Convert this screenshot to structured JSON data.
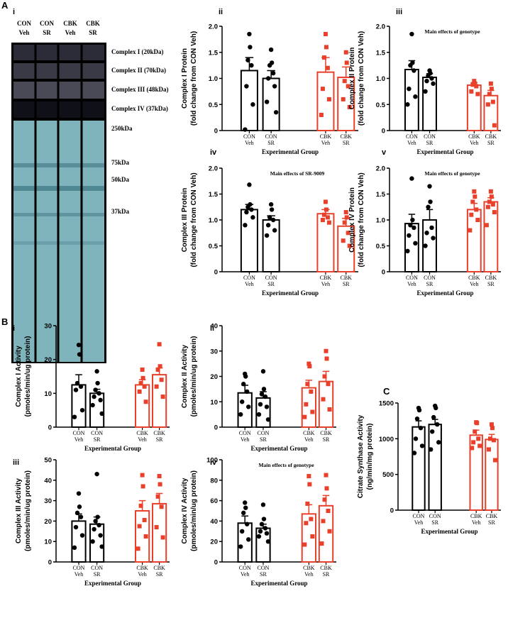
{
  "panels": {
    "A": "A",
    "A_i": "i",
    "B": "B",
    "C": "C"
  },
  "blot": {
    "lanes": [
      "CON Veh",
      "CON SR",
      "CBK Veh",
      "CBK SR"
    ],
    "bands": [
      "Complex I (20kDa)",
      "Complex II (70kDa)",
      "Complex III (48kDa)",
      "Complex IV (37kDa)"
    ],
    "markers": [
      "250kDa",
      "75kDa",
      "50kDa",
      "37kDa"
    ]
  },
  "chart_data": [
    {
      "type": "bar",
      "panel": "ii",
      "ylabel": [
        "Complex I Protein",
        "(fold change from CON Veh)"
      ],
      "xlabel": "Experimental Group",
      "categories": [
        "CON Veh",
        "CON SR",
        "CBK Veh",
        "CBK SR"
      ],
      "colors": [
        "#000000",
        "#000000",
        "#e8402a",
        "#e8402a"
      ],
      "markers": [
        "circle",
        "circle",
        "square",
        "square"
      ],
      "values": [
        1.15,
        1.0,
        1.12,
        1.02
      ],
      "errors": [
        0.25,
        0.15,
        0.28,
        0.2
      ],
      "points": [
        [
          1.85,
          1.6,
          1.35,
          1.25,
          0.85,
          0.5,
          0.02
        ],
        [
          1.55,
          1.3,
          1.25,
          1.1,
          1.0,
          0.85,
          0.55,
          0.35
        ],
        [
          1.85,
          1.6,
          1.4,
          1.2,
          0.8,
          0.6,
          0.3
        ],
        [
          1.5,
          1.3,
          0.95,
          0.85,
          0.6,
          0.45
        ]
      ],
      "ylim": [
        0,
        2
      ],
      "yticks": [
        0,
        0.5,
        {
          "value": 1,
          "label": "1.0"
        },
        1.5,
        {
          "value": 2,
          "label": "2.0"
        }
      ]
    },
    {
      "type": "bar",
      "panel": "iii",
      "annotation": "Main effects of genotype",
      "ylabel": [
        "Complex II Protein",
        "(fold change from CON Veh)"
      ],
      "xlabel": "Experimental Group",
      "categories": [
        "CON Veh",
        "CON SR",
        "CBK Veh",
        "CBK SR"
      ],
      "colors": [
        "#000000",
        "#000000",
        "#e8402a",
        "#e8402a"
      ],
      "markers": [
        "circle",
        "circle",
        "square",
        "square"
      ],
      "values": [
        1.17,
        1.02,
        0.87,
        0.67
      ],
      "errors": [
        0.17,
        0.07,
        0.05,
        0.1
      ],
      "points": [
        [
          1.85,
          1.3,
          1.25,
          1.15,
          0.8,
          0.65,
          0.5
        ],
        [
          1.15,
          1.1,
          1.05,
          1.0,
          0.95,
          0.9,
          0.75
        ],
        [
          0.95,
          0.9,
          0.88,
          0.85,
          0.75,
          0.7
        ],
        [
          0.9,
          0.8,
          0.7,
          0.55,
          0.5,
          0.1
        ]
      ],
      "ylim": [
        0,
        2
      ],
      "yticks": [
        0,
        0.5,
        {
          "value": 1,
          "label": "1.0"
        },
        1.5,
        {
          "value": 2,
          "label": "2.0"
        }
      ]
    },
    {
      "type": "bar",
      "panel": "iv",
      "annotation": "Main effects of SR-9009",
      "ylabel": [
        "Complex III Protein",
        "(fold change from CON Veh)"
      ],
      "xlabel": "Experimental Group",
      "categories": [
        "CON Veh",
        "CON SR",
        "CBK Veh",
        "CBK SR"
      ],
      "colors": [
        "#000000",
        "#000000",
        "#e8402a",
        "#e8402a"
      ],
      "markers": [
        "circle",
        "circle",
        "square",
        "square"
      ],
      "values": [
        1.2,
        1.0,
        1.12,
        0.88
      ],
      "errors": [
        0.1,
        0.08,
        0.08,
        0.15
      ],
      "points": [
        [
          1.68,
          1.3,
          1.25,
          1.2,
          1.15,
          1.05,
          0.9
        ],
        [
          1.3,
          1.2,
          1.05,
          1.0,
          0.9,
          0.8,
          0.7
        ],
        [
          1.35,
          1.2,
          1.1,
          1.05,
          1.0,
          0.95
        ],
        [
          1.15,
          1.05,
          0.95,
          0.75,
          0.6,
          0.5
        ]
      ],
      "ylim": [
        0,
        2
      ],
      "yticks": [
        0,
        0.5,
        {
          "value": 1,
          "label": "1.0"
        },
        1.5,
        {
          "value": 2,
          "label": "2.0"
        }
      ]
    },
    {
      "type": "bar",
      "panel": "v",
      "annotation": "Main effects of genotype",
      "ylabel": [
        "Complex IV Protein",
        "(fold change from CON Veh)"
      ],
      "xlabel": "Experimental Group",
      "categories": [
        "CON Veh",
        "CON SR",
        "CBK Veh",
        "CBK SR"
      ],
      "colors": [
        "#000000",
        "#000000",
        "#e8402a",
        "#e8402a"
      ],
      "markers": [
        "circle",
        "circle",
        "square",
        "square"
      ],
      "values": [
        0.93,
        1.0,
        1.2,
        1.35
      ],
      "errors": [
        0.18,
        0.2,
        0.12,
        0.08
      ],
      "points": [
        [
          1.8,
          1.0,
          0.9,
          0.85,
          0.7,
          0.55,
          0.4
        ],
        [
          1.65,
          1.35,
          1.25,
          0.85,
          0.75,
          0.65,
          0.5
        ],
        [
          1.55,
          1.45,
          1.35,
          1.2,
          1.1,
          1.0,
          0.8
        ],
        [
          1.55,
          1.45,
          1.35,
          1.3,
          1.25,
          1.15,
          0.9
        ]
      ],
      "ylim": [
        0,
        2
      ],
      "yticks": [
        0,
        0.5,
        {
          "value": 1,
          "label": "1.0"
        },
        1.5,
        {
          "value": 2,
          "label": "2.0"
        }
      ]
    },
    {
      "type": "bar",
      "panel": "i",
      "ylabel": [
        "Complex I Activity",
        "(pmoles/min/ug protein)"
      ],
      "xlabel": "Experimental Group",
      "categories": [
        "CON Veh",
        "CON SR",
        "CBK Veh",
        "CBK SR"
      ],
      "colors": [
        "#000000",
        "#000000",
        "#e8402a",
        "#e8402a"
      ],
      "markers": [
        "circle",
        "circle",
        "square",
        "square"
      ],
      "values": [
        12.5,
        10,
        12.5,
        15.5
      ],
      "errors": [
        3,
        1.2,
        1.5,
        2
      ],
      "points": [
        [
          24.3,
          21.5,
          13,
          12,
          11,
          5,
          3
        ],
        [
          16.5,
          13,
          11,
          10,
          9,
          8,
          6.5,
          4
        ],
        [
          17,
          14.5,
          13,
          12,
          10.5,
          7.5
        ],
        [
          24.5,
          18,
          17,
          14,
          12,
          9
        ]
      ],
      "ylim": [
        0,
        30
      ],
      "yticks": [
        0,
        10,
        20,
        30
      ]
    },
    {
      "type": "bar",
      "panel": "ii",
      "ylabel": [
        "Complex II Activity",
        "(pmoles/min/ug protein)"
      ],
      "xlabel": "Experimental Group",
      "categories": [
        "CON Veh",
        "CON SR",
        "CBK Veh",
        "CBK SR"
      ],
      "colors": [
        "#000000",
        "#000000",
        "#e8402a",
        "#e8402a"
      ],
      "markers": [
        "circle",
        "circle",
        "square",
        "square"
      ],
      "values": [
        13.5,
        11.5,
        15.5,
        18
      ],
      "errors": [
        3,
        2.5,
        3,
        4
      ],
      "points": [
        [
          21,
          20,
          17,
          14,
          10,
          8,
          5
        ],
        [
          22,
          15,
          13,
          12,
          9,
          8,
          5,
          3
        ],
        [
          25,
          24,
          17,
          14,
          9,
          6,
          4
        ],
        [
          30,
          27,
          20,
          17,
          11,
          7
        ]
      ],
      "ylim": [
        0,
        40
      ],
      "yticks": [
        0,
        10,
        20,
        30,
        40
      ]
    },
    {
      "type": "bar",
      "panel": "iii",
      "ylabel": [
        "Complex III Activity",
        "(pmoles/min/ug protein)"
      ],
      "xlabel": "Experimental Group",
      "categories": [
        "CON Veh",
        "CON SR",
        "CBK Veh",
        "CBK SR"
      ],
      "colors": [
        "#000000",
        "#000000",
        "#e8402a",
        "#e8402a"
      ],
      "markers": [
        "circle",
        "circle",
        "square",
        "square"
      ],
      "values": [
        20,
        18.5,
        25,
        28.5
      ],
      "errors": [
        3.5,
        3.5,
        5,
        5
      ],
      "points": [
        [
          33.5,
          27,
          24,
          22,
          17,
          13,
          7
        ],
        [
          43,
          22,
          20,
          18,
          16,
          13,
          10,
          7.5
        ],
        [
          42.5,
          37,
          27.5,
          20.5,
          17.5,
          12.5,
          6.5
        ],
        [
          42,
          38,
          32,
          27,
          17,
          12
        ]
      ],
      "ylim": [
        0,
        50
      ],
      "yticks": [
        0,
        10,
        20,
        30,
        40,
        50
      ]
    },
    {
      "type": "bar",
      "panel": "iv",
      "annotation": "Main effects of genotype",
      "ylabel": [
        "Complex IV Activity",
        "(pmoles/min/ug protein)"
      ],
      "xlabel": "Experimental Group",
      "categories": [
        "CON Veh",
        "CON SR",
        "CBK Veh",
        "CBK SR"
      ],
      "colors": [
        "#000000",
        "#000000",
        "#e8402a",
        "#e8402a"
      ],
      "markers": [
        "circle",
        "circle",
        "square",
        "square"
      ],
      "values": [
        38,
        33,
        47,
        55
      ],
      "errors": [
        7,
        4,
        9,
        10
      ],
      "points": [
        [
          58,
          53,
          48,
          37,
          30,
          22,
          15
        ],
        [
          56,
          42,
          37,
          33,
          30,
          28,
          25,
          20
        ],
        [
          84,
          76,
          57,
          42,
          38,
          25,
          17
        ],
        [
          85,
          72,
          61,
          50,
          40,
          30,
          18
        ]
      ],
      "ylim": [
        0,
        100
      ],
      "yticks": [
        0,
        20,
        40,
        60,
        80,
        100
      ]
    },
    {
      "type": "bar",
      "ylabel": [
        "Citrate Synthase Activity",
        "(ng/min/mg protein)"
      ],
      "xlabel": "Experimental Group",
      "categories": [
        "CON Veh",
        "CON SR",
        "CBK Veh",
        "CBK SR"
      ],
      "colors": [
        "#000000",
        "#000000",
        "#e8402a",
        "#e8402a"
      ],
      "markers": [
        "circle",
        "circle",
        "square",
        "square"
      ],
      "values": [
        1165,
        1200,
        1050,
        990
      ],
      "errors": [
        85,
        70,
        70,
        70
      ],
      "points": [
        [
          1430,
          1400,
          1280,
          1150,
          1000,
          900,
          800
        ],
        [
          1460,
          1430,
          1300,
          1200,
          1100,
          950,
          850
        ],
        [
          1230,
          1220,
          1100,
          1000,
          950,
          900,
          870
        ],
        [
          1200,
          1150,
          1000,
          980,
          850,
          700
        ]
      ],
      "ylim": [
        0,
        1500
      ],
      "yticks": [
        0,
        500,
        1000,
        1500
      ]
    }
  ]
}
